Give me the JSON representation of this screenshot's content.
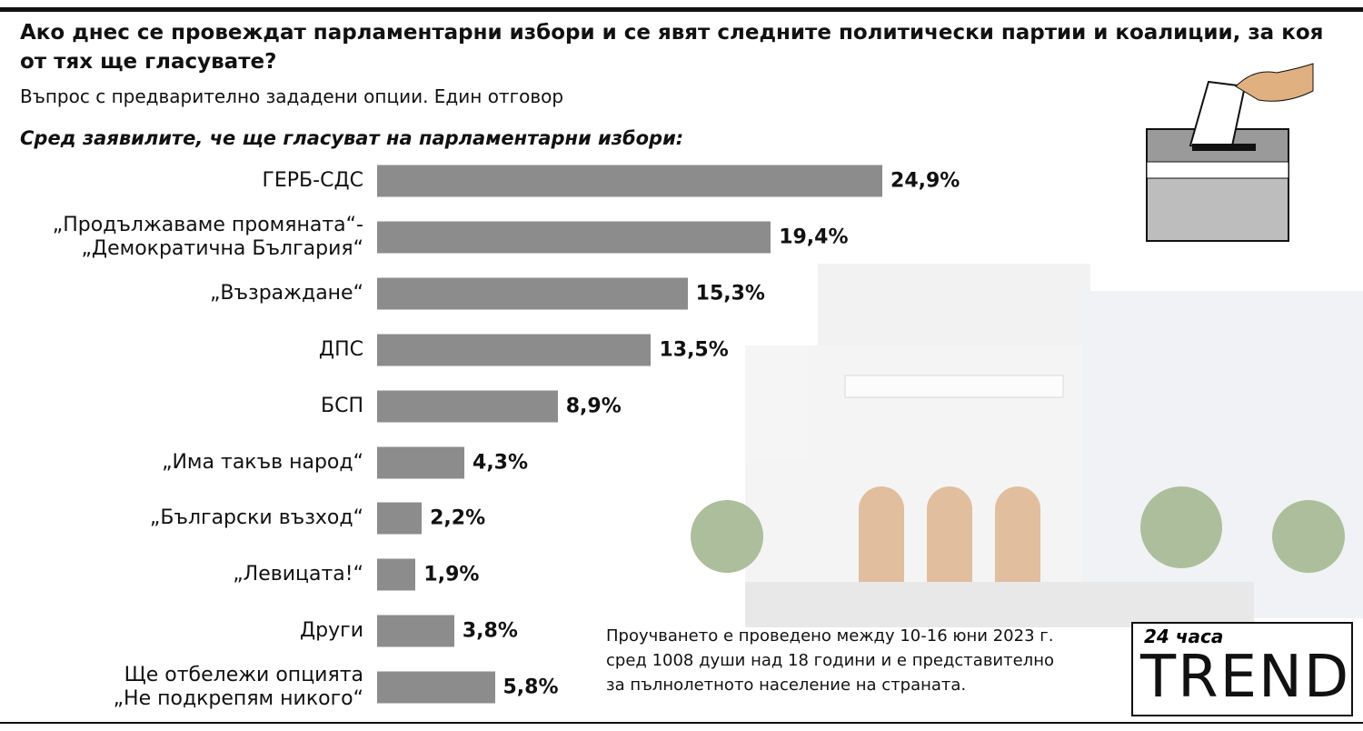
{
  "chart_data": {
    "type": "bar",
    "orientation": "horizontal",
    "title": "Ако днес се провеждат парламентарни избори и се явят следните политически партии и коалиции, за коя от тях ще гласувате?",
    "subtitle": "Въпрос с предварително зададени опции. Един отговор",
    "group_label": "Сред заявилите, че ще гласуват на парламентарни избори:",
    "categories": [
      "ГЕРБ-СДС",
      "„Продължаваме промяната“-\n„Демократична България“",
      "„Възраждане“",
      "ДПС",
      "БСП",
      "„Има такъв народ“",
      "„Български възход“",
      "„Левицата!“",
      "Други",
      "Ще отбележи опцията\n„Не подкрепям никого“"
    ],
    "values": [
      24.9,
      19.4,
      15.3,
      13.5,
      8.9,
      4.3,
      2.2,
      1.9,
      3.8,
      5.8
    ],
    "value_labels": [
      "24,9%",
      "19,4%",
      "15,3%",
      "13,5%",
      "8,9%",
      "4,3%",
      "2,2%",
      "1,9%",
      "3,8%",
      "5,8%"
    ],
    "color": "#8c8c8c",
    "note": [
      "Проучването е проведено между 10-16 юни 2023 г.",
      "сред 1008 души над 18 години и е представително",
      "за пълнолетното население на страната."
    ],
    "logo": {
      "top": "24 часа",
      "word": "TREND"
    }
  }
}
